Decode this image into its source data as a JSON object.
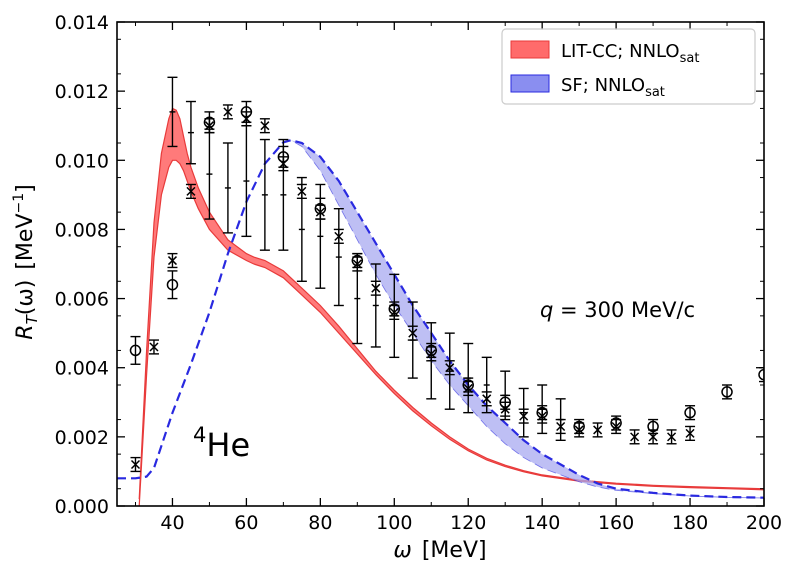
{
  "chart_data": {
    "type": "line",
    "xlabel_symbol": "ω",
    "xlabel_unit": "[MeV]",
    "ylabel_symbol": "R",
    "ylabel_sub": "T",
    "ylabel_arg": "(ω)",
    "ylabel_unit": "[MeV",
    "ylabel_unit_sup": "−1",
    "ylabel_unit_close": "]",
    "xlim": [
      25,
      200
    ],
    "ylim": [
      0,
      0.014
    ],
    "xticks": [
      "40",
      "60",
      "80",
      "100",
      "120",
      "140",
      "160",
      "180",
      "200"
    ],
    "xtick_values": [
      40,
      60,
      80,
      100,
      120,
      140,
      160,
      180,
      200
    ],
    "yticks": [
      "0.000",
      "0.002",
      "0.004",
      "0.006",
      "0.008",
      "0.010",
      "0.012",
      "0.014"
    ],
    "ytick_values": [
      0,
      0.002,
      0.004,
      0.006,
      0.008,
      0.01,
      0.012,
      0.014
    ],
    "grid": false,
    "legend_position": "top-right",
    "legend": [
      {
        "label": "LIT-CC; NNLO",
        "sub": "sat",
        "color": "#ff6b6b"
      },
      {
        "label": "SF; NNLO",
        "sub": "sat",
        "color": "#8a8ef0"
      }
    ],
    "annotation_q": {
      "italic": "q",
      "text": " = 300 MeV/c"
    },
    "annotation_nucleus": {
      "sup": "4",
      "text": "He"
    },
    "series": [
      {
        "name": "LIT-CC; NNLO",
        "name_sub": "sat",
        "kind": "band",
        "fill": "#ff6b6b",
        "edge": "#e83a3a",
        "x": [
          31,
          33,
          35,
          37,
          39,
          40,
          41,
          42,
          43,
          44,
          45,
          47,
          50,
          55,
          60,
          62,
          65,
          70,
          75,
          80,
          85,
          90,
          95,
          100,
          105,
          110,
          115,
          120,
          125,
          130,
          135,
          140,
          150,
          160,
          170,
          180,
          190,
          200
        ],
        "upper": [
          0.0002,
          0.0045,
          0.0082,
          0.0102,
          0.0112,
          0.0115,
          0.01145,
          0.0112,
          0.0107,
          0.0102,
          0.0098,
          0.0092,
          0.0085,
          0.0077,
          0.0073,
          0.0072,
          0.0071,
          0.0068,
          0.0063,
          0.0058,
          0.0052,
          0.00455,
          0.0039,
          0.00335,
          0.00285,
          0.0024,
          0.002,
          0.00165,
          0.00138,
          0.00118,
          0.00102,
          0.0009,
          0.00075,
          0.00066,
          0.0006,
          0.00056,
          0.00053,
          0.0005
        ],
        "lower": [
          0.0,
          0.0038,
          0.0072,
          0.009,
          0.0098,
          0.01,
          0.01,
          0.0099,
          0.0097,
          0.0094,
          0.0091,
          0.0086,
          0.008,
          0.0074,
          0.0071,
          0.007,
          0.0069,
          0.0066,
          0.0061,
          0.0056,
          0.005,
          0.0044,
          0.0038,
          0.00325,
          0.00275,
          0.00232,
          0.00193,
          0.0016,
          0.00133,
          0.00114,
          0.00099,
          0.00087,
          0.00072,
          0.00063,
          0.00057,
          0.00053,
          0.0005,
          0.00047
        ]
      },
      {
        "name": "SF; NNLO",
        "name_sub": "sat",
        "kind": "band",
        "fill": "#a8aaf0",
        "edge": "#2a2ae0",
        "x": [
          25,
          30,
          33,
          35,
          40,
          45,
          50,
          55,
          60,
          65,
          70,
          72,
          75,
          80,
          85,
          90,
          95,
          100,
          105,
          110,
          115,
          120,
          125,
          130,
          135,
          140,
          145,
          150,
          155,
          160,
          170,
          180,
          190,
          200
        ],
        "upper": [
          0.0008,
          0.0008,
          0.00085,
          0.0011,
          0.0027,
          0.0041,
          0.0056,
          0.0073,
          0.0088,
          0.0099,
          0.01052,
          0.01058,
          0.0105,
          0.0101,
          0.0094,
          0.0085,
          0.0076,
          0.0067,
          0.0058,
          0.005,
          0.0042,
          0.0035,
          0.0029,
          0.0024,
          0.0019,
          0.0015,
          0.0012,
          0.0009,
          0.00065,
          0.0005,
          0.00038,
          0.0003,
          0.00026,
          0.00024
        ],
        "lower": [
          0.0008,
          0.0008,
          0.00085,
          0.0011,
          0.0027,
          0.0041,
          0.0056,
          0.0073,
          0.0088,
          0.0099,
          0.01052,
          0.01058,
          0.0104,
          0.0097,
          0.0087,
          0.0077,
          0.0067,
          0.0058,
          0.005,
          0.0042,
          0.0035,
          0.0029,
          0.0023,
          0.0018,
          0.0014,
          0.0011,
          0.0009,
          0.0007,
          0.00055,
          0.00045,
          0.00036,
          0.00029,
          0.00025,
          0.00023
        ]
      },
      {
        "name": "",
        "kind": "errorbars",
        "color": "#000000",
        "points": [
          [
            40,
            0.0114,
            0.001
          ],
          [
            45,
            0.0108,
            0.0009
          ],
          [
            50,
            0.0096,
            0.0013
          ],
          [
            55,
            0.0092,
            0.0013
          ],
          [
            60,
            0.0094,
            0.0016
          ],
          [
            65,
            0.009,
            0.0016
          ],
          [
            70,
            0.009,
            0.0016
          ],
          [
            75,
            0.008,
            0.0015
          ],
          [
            80,
            0.0078,
            0.0015
          ],
          [
            85,
            0.0072,
            0.0014
          ],
          [
            90,
            0.006,
            0.0013
          ],
          [
            95,
            0.0058,
            0.0012
          ],
          [
            100,
            0.0055,
            0.0012
          ],
          [
            105,
            0.0048,
            0.0011
          ],
          [
            110,
            0.0042,
            0.0011
          ],
          [
            115,
            0.0039,
            0.0011
          ],
          [
            120,
            0.0037,
            0.001
          ],
          [
            125,
            0.0035,
            0.0008
          ],
          [
            130,
            0.0032,
            0.0007
          ],
          [
            135,
            0.0027,
            0.0007
          ],
          [
            140,
            0.0028,
            0.0007
          ],
          [
            145,
            0.0025,
            0.0006
          ]
        ]
      },
      {
        "name": "",
        "kind": "markers-circle",
        "color": "#000000",
        "points": [
          [
            30,
            0.0045,
            0.0004
          ],
          [
            40,
            0.0064,
            0.0004
          ],
          [
            50,
            0.0111,
            0.0003
          ],
          [
            60,
            0.0114,
            0.0003
          ],
          [
            70,
            0.0101,
            0.0003
          ],
          [
            80,
            0.0086,
            0.0003
          ],
          [
            90,
            0.0071,
            0.0002
          ],
          [
            100,
            0.0057,
            0.0002
          ],
          [
            110,
            0.0045,
            0.0002
          ],
          [
            120,
            0.0035,
            0.0002
          ],
          [
            130,
            0.003,
            0.0002
          ],
          [
            140,
            0.0027,
            0.0002
          ],
          [
            150,
            0.0023,
            0.0002
          ],
          [
            160,
            0.0024,
            0.0002
          ],
          [
            170,
            0.0023,
            0.0002
          ],
          [
            180,
            0.0027,
            0.0002
          ],
          [
            190,
            0.0033,
            0.0002
          ],
          [
            200,
            0.0038,
            0.0002
          ]
        ]
      },
      {
        "name": "",
        "kind": "markers-x",
        "color": "#000000",
        "points": [
          [
            30,
            0.0012,
            0.0002
          ],
          [
            35,
            0.0046,
            0.0002
          ],
          [
            40,
            0.0071,
            0.0002
          ],
          [
            45,
            0.0091,
            0.0002
          ],
          [
            50,
            0.011,
            0.0002
          ],
          [
            55,
            0.0114,
            0.0002
          ],
          [
            60,
            0.0112,
            0.0002
          ],
          [
            65,
            0.011,
            0.0002
          ],
          [
            70,
            0.0099,
            0.0002
          ],
          [
            75,
            0.0091,
            0.0002
          ],
          [
            80,
            0.0085,
            0.0002
          ],
          [
            85,
            0.0078,
            0.0002
          ],
          [
            90,
            0.007,
            0.0002
          ],
          [
            95,
            0.0063,
            0.0002
          ],
          [
            100,
            0.0056,
            0.0002
          ],
          [
            105,
            0.005,
            0.0002
          ],
          [
            110,
            0.0044,
            0.0002
          ],
          [
            115,
            0.004,
            0.0002
          ],
          [
            120,
            0.0034,
            0.0002
          ],
          [
            125,
            0.0031,
            0.0002
          ],
          [
            130,
            0.0028,
            0.0002
          ],
          [
            135,
            0.0026,
            0.0002
          ],
          [
            140,
            0.0026,
            0.0002
          ],
          [
            145,
            0.0023,
            0.0002
          ],
          [
            150,
            0.0022,
            0.0002
          ],
          [
            155,
            0.0022,
            0.0002
          ],
          [
            160,
            0.0023,
            0.0002
          ],
          [
            165,
            0.002,
            0.0002
          ],
          [
            170,
            0.002,
            0.0002
          ],
          [
            175,
            0.002,
            0.0002
          ],
          [
            180,
            0.0021,
            0.0002
          ]
        ]
      }
    ]
  }
}
